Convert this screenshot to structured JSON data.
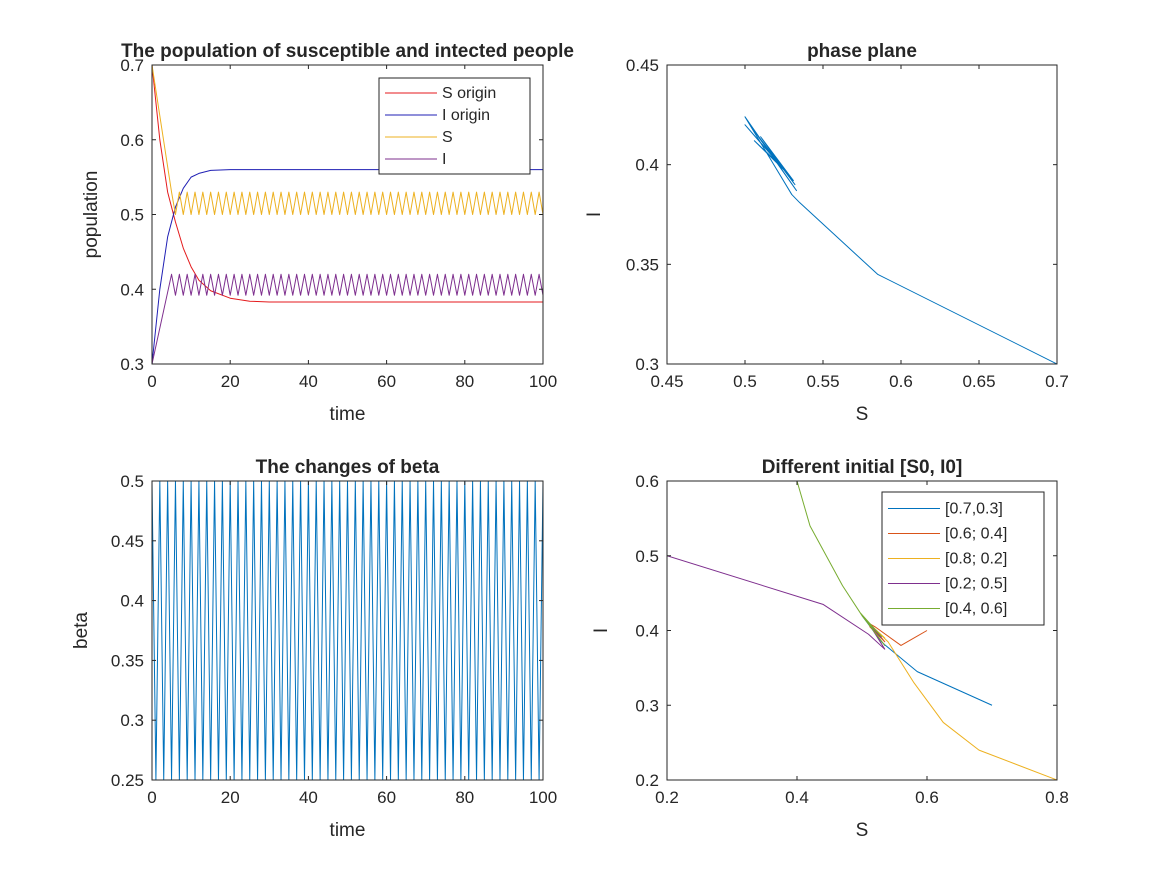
{
  "chart_data": [
    {
      "type": "line",
      "title": "The population of susceptible and intected people",
      "xlabel": "time",
      "ylabel": "population",
      "xlim": [
        0,
        100
      ],
      "ylim": [
        0.3,
        0.7
      ],
      "xticks": [
        0,
        20,
        40,
        60,
        80,
        100
      ],
      "yticks": [
        0.3,
        0.4,
        0.5,
        0.6,
        0.7
      ],
      "legend_position": "top-right",
      "series": [
        {
          "name": "S origin",
          "color": "#e41a1c",
          "x": [
            0,
            2,
            4,
            6,
            8,
            10,
            12,
            15,
            20,
            25,
            30,
            40,
            100
          ],
          "y": [
            0.7,
            0.6,
            0.53,
            0.49,
            0.455,
            0.43,
            0.412,
            0.398,
            0.388,
            0.384,
            0.383,
            0.383,
            0.383
          ]
        },
        {
          "name": "I origin",
          "color": "#1f1fb4",
          "x": [
            0,
            2,
            4,
            6,
            8,
            10,
            12,
            15,
            20,
            25,
            30,
            40,
            100
          ],
          "y": [
            0.3,
            0.4,
            0.47,
            0.51,
            0.535,
            0.55,
            0.555,
            0.559,
            0.56,
            0.56,
            0.56,
            0.56,
            0.56
          ]
        },
        {
          "name": "S",
          "color": "#edb120",
          "pattern": {
            "start_x": 0,
            "start_y": 0.7,
            "settle_x": 5,
            "period": 2,
            "high": 0.53,
            "low": 0.5
          }
        },
        {
          "name": "I",
          "color": "#7e2f8e",
          "pattern": {
            "start_x": 0,
            "start_y": 0.3,
            "settle_x": 5,
            "period": 2,
            "high": 0.42,
            "low": 0.392
          }
        }
      ]
    },
    {
      "type": "line",
      "title": "phase plane",
      "xlabel": "S",
      "ylabel": "I",
      "xlim": [
        0.45,
        0.7
      ],
      "ylim": [
        0.3,
        0.45
      ],
      "xticks": [
        0.45,
        0.5,
        0.55,
        0.6,
        0.65,
        0.7
      ],
      "yticks": [
        0.3,
        0.35,
        0.4,
        0.45
      ],
      "series": [
        {
          "color": "#0072bd",
          "x": [
            0.7,
            0.585,
            0.535,
            0.53,
            0.5,
            0.533,
            0.505,
            0.532,
            0.51,
            0.531,
            0.5,
            0.528,
            0.506,
            0.525
          ],
          "y": [
            0.3,
            0.345,
            0.381,
            0.385,
            0.424,
            0.387,
            0.418,
            0.39,
            0.414,
            0.392,
            0.42,
            0.395,
            0.412,
            0.398
          ]
        }
      ]
    },
    {
      "type": "line",
      "title": "The changes of beta",
      "xlabel": "time",
      "ylabel": "beta",
      "xlim": [
        0,
        100
      ],
      "ylim": [
        0.25,
        0.5
      ],
      "xticks": [
        0,
        20,
        40,
        60,
        80,
        100
      ],
      "yticks": [
        0.25,
        0.3,
        0.35,
        0.4,
        0.45,
        0.5
      ],
      "series": [
        {
          "color": "#0072bd",
          "pattern": {
            "start_x": 0,
            "start_y": 0.5,
            "settle_x": 0,
            "period": 2,
            "high": 0.5,
            "low": 0.25
          }
        }
      ]
    },
    {
      "type": "line",
      "title": "Different initial [S0, I0]",
      "xlabel": "S",
      "ylabel": "I",
      "xlim": [
        0.2,
        0.8
      ],
      "ylim": [
        0.2,
        0.6
      ],
      "xticks": [
        0.2,
        0.4,
        0.6,
        0.8
      ],
      "yticks": [
        0.2,
        0.3,
        0.4,
        0.5,
        0.6
      ],
      "legend_position": "top-right",
      "series": [
        {
          "name": "[0.7,0.3]",
          "color": "#0072bd",
          "x": [
            0.7,
            0.585,
            0.535,
            0.53,
            0.5,
            0.532,
            0.51,
            0.53
          ],
          "y": [
            0.3,
            0.345,
            0.381,
            0.385,
            0.42,
            0.388,
            0.41,
            0.393
          ]
        },
        {
          "name": "[0.6; 0.4]",
          "color": "#d95319",
          "x": [
            0.6,
            0.56,
            0.52,
            0.51,
            0.535,
            0.512,
            0.53
          ],
          "y": [
            0.4,
            0.38,
            0.405,
            0.41,
            0.385,
            0.405,
            0.392
          ]
        },
        {
          "name": "[0.8; 0.2]",
          "color": "#edb120",
          "x": [
            0.8,
            0.68,
            0.625,
            0.58,
            0.54,
            0.51,
            0.535,
            0.515,
            0.53
          ],
          "y": [
            0.2,
            0.24,
            0.277,
            0.33,
            0.385,
            0.41,
            0.39,
            0.405,
            0.393
          ]
        },
        {
          "name": "[0.2; 0.5]",
          "color": "#7e2f8e",
          "x": [
            0.2,
            0.44,
            0.51,
            0.535,
            0.51,
            0.53
          ],
          "y": [
            0.5,
            0.435,
            0.395,
            0.375,
            0.41,
            0.39
          ]
        },
        {
          "name": "[0.4, 0.6]",
          "color": "#77ac30",
          "x": [
            0.4,
            0.42,
            0.47,
            0.5,
            0.535,
            0.497,
            0.53,
            0.51
          ],
          "y": [
            0.6,
            0.54,
            0.46,
            0.42,
            0.38,
            0.424,
            0.392,
            0.41
          ]
        }
      ]
    }
  ]
}
